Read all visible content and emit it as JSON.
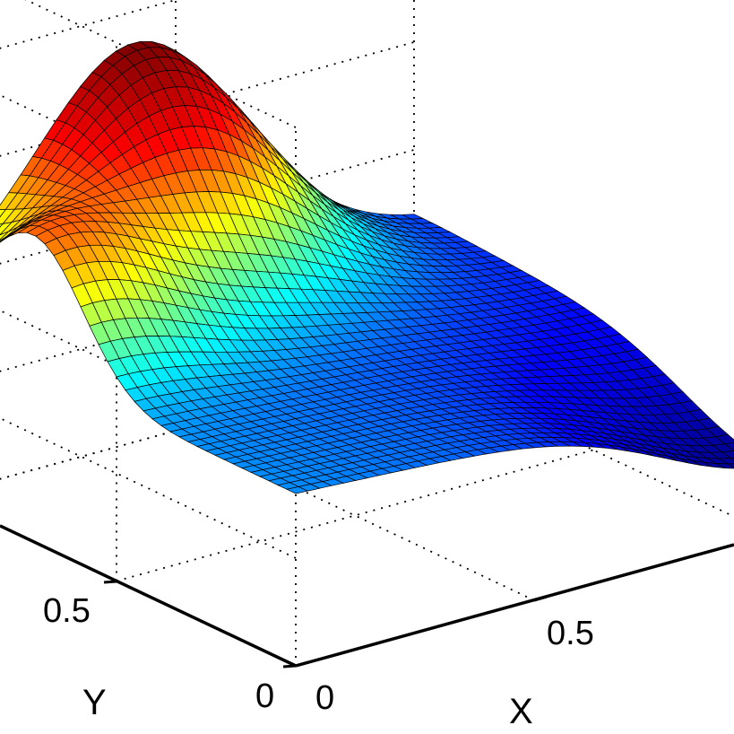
{
  "chart_data": {
    "type": "surface",
    "colormap": "jet",
    "colormap_stops": [
      "#00008f",
      "#0000ff",
      "#00ffff",
      "#ffff00",
      "#ff0000",
      "#800000"
    ],
    "grid": true,
    "edge_color": "#000000",
    "xlabel": "X",
    "ylabel": "Y",
    "zlabel": "",
    "xlim": [
      0,
      1
    ],
    "ylim": [
      0,
      1
    ],
    "x_ticks": [
      {
        "value": 0,
        "label": "0"
      },
      {
        "value": 0.5,
        "label": "0.5"
      }
    ],
    "y_ticks": [
      {
        "value": 0,
        "label": "0"
      },
      {
        "value": 0.5,
        "label": "0.5"
      }
    ],
    "surface_shape": "two peaks: large peak at approximately (x=0.4, y=1), smaller peak at approximately (x=0, y=0.7), low valley near (x=1, y=0)"
  }
}
